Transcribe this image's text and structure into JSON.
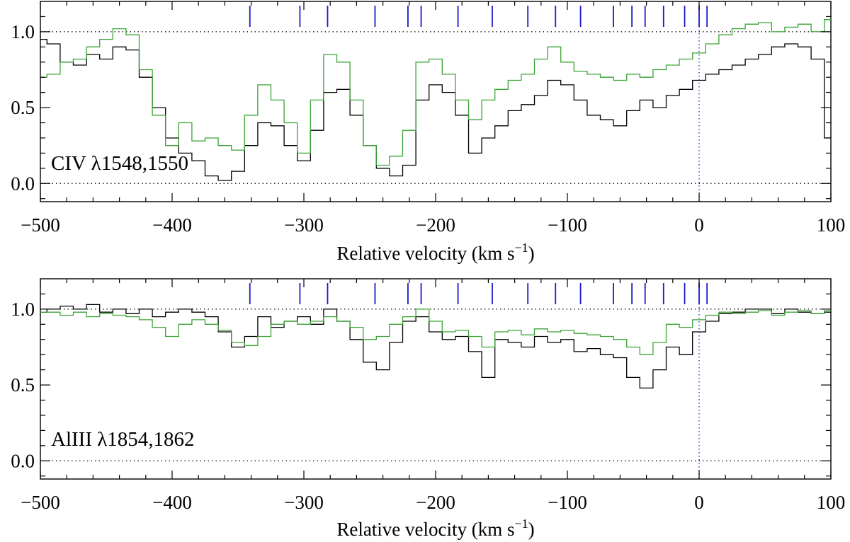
{
  "chart_data": [
    {
      "type": "line",
      "id": "civ",
      "label": "CIV λ1548,1550",
      "xlabel_main": "Relative velocity (km s",
      "xlabel_sup": "−1",
      "xlabel_close": ")",
      "xlim": [
        -500,
        100
      ],
      "ylim": [
        -0.12,
        1.2
      ],
      "x_ticks": [
        -500,
        -400,
        -300,
        -200,
        -100,
        0,
        100
      ],
      "x_tick_labels": [
        "−500",
        "−400",
        "−300",
        "−200",
        "−100",
        "0",
        "100"
      ],
      "y_ticks": [
        0.0,
        0.5,
        1.0
      ],
      "y_tick_labels": [
        "0.0",
        "0.5",
        "1.0"
      ],
      "reference_lines": [
        0.0,
        1.0
      ],
      "component_velocities": [
        -341,
        -303,
        -282,
        -246,
        -221,
        -211,
        -183,
        -157,
        -130,
        -109,
        -90,
        -65,
        -51,
        -41,
        -27,
        -11,
        0,
        6
      ],
      "series": [
        {
          "name": "black spectrum",
          "color": "#000000",
          "x": [
            -500,
            -490,
            -480,
            -470,
            -460,
            -450,
            -440,
            -430,
            -420,
            -410,
            -400,
            -390,
            -380,
            -370,
            -360,
            -350,
            -340,
            -330,
            -320,
            -310,
            -300,
            -290,
            -280,
            -270,
            -260,
            -250,
            -240,
            -230,
            -220,
            -210,
            -200,
            -190,
            -180,
            -170,
            -160,
            -150,
            -140,
            -130,
            -120,
            -110,
            -100,
            -90,
            -80,
            -70,
            -60,
            -50,
            -40,
            -30,
            -20,
            -10,
            0,
            10,
            20,
            30,
            40,
            50,
            60,
            70,
            80,
            90,
            100
          ],
          "y": [
            0.95,
            0.92,
            0.8,
            0.78,
            0.85,
            0.82,
            0.9,
            0.88,
            0.7,
            0.5,
            0.3,
            0.2,
            0.15,
            0.05,
            0.02,
            0.08,
            0.25,
            0.4,
            0.38,
            0.25,
            0.15,
            0.35,
            0.6,
            0.62,
            0.45,
            0.25,
            0.1,
            0.05,
            0.12,
            0.55,
            0.65,
            0.6,
            0.45,
            0.2,
            0.3,
            0.38,
            0.48,
            0.52,
            0.58,
            0.68,
            0.65,
            0.55,
            0.45,
            0.42,
            0.38,
            0.48,
            0.55,
            0.5,
            0.58,
            0.62,
            0.68,
            0.72,
            0.75,
            0.78,
            0.82,
            0.85,
            0.9,
            0.92,
            0.9,
            0.82,
            0.3
          ]
        },
        {
          "name": "green spectrum",
          "color": "#3aa335",
          "x": [
            -500,
            -490,
            -480,
            -470,
            -460,
            -450,
            -440,
            -430,
            -420,
            -410,
            -400,
            -390,
            -380,
            -370,
            -360,
            -350,
            -340,
            -330,
            -320,
            -310,
            -300,
            -290,
            -280,
            -270,
            -260,
            -250,
            -240,
            -230,
            -220,
            -210,
            -200,
            -190,
            -180,
            -170,
            -160,
            -150,
            -140,
            -130,
            -120,
            -110,
            -100,
            -90,
            -80,
            -70,
            -60,
            -50,
            -40,
            -30,
            -20,
            -10,
            0,
            10,
            20,
            30,
            40,
            50,
            60,
            70,
            80,
            90,
            100
          ],
          "y": [
            0.7,
            0.72,
            0.8,
            0.82,
            0.9,
            0.95,
            1.02,
            0.98,
            0.75,
            0.45,
            0.25,
            0.4,
            0.28,
            0.3,
            0.25,
            0.22,
            0.45,
            0.65,
            0.55,
            0.4,
            0.2,
            0.55,
            0.85,
            0.8,
            0.55,
            0.25,
            0.12,
            0.18,
            0.35,
            0.8,
            0.82,
            0.72,
            0.55,
            0.42,
            0.55,
            0.62,
            0.68,
            0.72,
            0.82,
            0.9,
            0.8,
            0.74,
            0.72,
            0.7,
            0.68,
            0.72,
            0.7,
            0.75,
            0.78,
            0.82,
            0.86,
            0.92,
            0.98,
            1.02,
            1.05,
            1.06,
            1.0,
            1.03,
            1.05,
            1.0,
            1.08
          ]
        }
      ]
    },
    {
      "type": "line",
      "id": "aliii",
      "label": "AlIII λ1854,1862",
      "xlabel_main": "Relative velocity (km s",
      "xlabel_sup": "−1",
      "xlabel_close": ")",
      "xlim": [
        -500,
        100
      ],
      "ylim": [
        -0.12,
        1.2
      ],
      "x_ticks": [
        -500,
        -400,
        -300,
        -200,
        -100,
        0,
        100
      ],
      "x_tick_labels": [
        "−500",
        "−400",
        "−300",
        "−200",
        "−100",
        "0",
        "100"
      ],
      "y_ticks": [
        0.0,
        0.5,
        1.0
      ],
      "y_tick_labels": [
        "0.0",
        "0.5",
        "1.0"
      ],
      "reference_lines": [
        0.0,
        1.0
      ],
      "component_velocities": [
        -341,
        -303,
        -282,
        -246,
        -221,
        -211,
        -183,
        -157,
        -130,
        -109,
        -90,
        -65,
        -51,
        -41,
        -27,
        -11,
        0,
        6
      ],
      "series": [
        {
          "name": "black spectrum",
          "color": "#000000",
          "x": [
            -500,
            -490,
            -480,
            -470,
            -460,
            -450,
            -440,
            -430,
            -420,
            -410,
            -400,
            -390,
            -380,
            -370,
            -360,
            -350,
            -340,
            -330,
            -320,
            -310,
            -300,
            -290,
            -280,
            -270,
            -260,
            -250,
            -240,
            -230,
            -220,
            -210,
            -200,
            -190,
            -180,
            -170,
            -160,
            -150,
            -140,
            -130,
            -120,
            -110,
            -100,
            -90,
            -80,
            -70,
            -60,
            -50,
            -40,
            -30,
            -20,
            -10,
            0,
            10,
            20,
            30,
            40,
            50,
            60,
            70,
            80,
            90,
            100
          ],
          "y": [
            0.98,
            1.0,
            1.02,
            1.0,
            1.03,
            0.98,
            1.0,
            0.97,
            1.0,
            0.95,
            0.98,
            1.0,
            0.98,
            0.95,
            0.85,
            0.75,
            0.82,
            0.95,
            0.88,
            0.92,
            0.95,
            0.9,
            1.0,
            0.92,
            0.8,
            0.65,
            0.6,
            0.78,
            0.92,
            0.95,
            0.85,
            0.8,
            0.82,
            0.72,
            0.55,
            0.8,
            0.78,
            0.75,
            0.82,
            0.78,
            0.8,
            0.72,
            0.74,
            0.7,
            0.68,
            0.55,
            0.48,
            0.6,
            0.75,
            0.7,
            0.85,
            0.92,
            0.97,
            0.98,
            1.0,
            1.0,
            0.97,
            1.0,
            0.98,
            0.97,
            0.98
          ]
        },
        {
          "name": "green spectrum",
          "color": "#3aa335",
          "x": [
            -500,
            -490,
            -480,
            -470,
            -460,
            -450,
            -440,
            -430,
            -420,
            -410,
            -400,
            -390,
            -380,
            -370,
            -360,
            -350,
            -340,
            -330,
            -320,
            -310,
            -300,
            -290,
            -280,
            -270,
            -260,
            -250,
            -240,
            -230,
            -220,
            -210,
            -200,
            -190,
            -180,
            -170,
            -160,
            -150,
            -140,
            -130,
            -120,
            -110,
            -100,
            -90,
            -80,
            -70,
            -60,
            -50,
            -40,
            -30,
            -20,
            -10,
            0,
            10,
            20,
            30,
            40,
            50,
            60,
            70,
            80,
            90,
            100
          ],
          "y": [
            0.98,
            0.98,
            0.96,
            0.98,
            0.95,
            0.97,
            0.96,
            0.95,
            0.93,
            0.88,
            0.82,
            0.9,
            0.93,
            0.9,
            0.86,
            0.78,
            0.76,
            0.82,
            0.9,
            0.92,
            0.9,
            0.92,
            0.95,
            0.92,
            0.88,
            0.8,
            0.82,
            0.9,
            0.95,
            1.0,
            0.92,
            0.85,
            0.86,
            0.82,
            0.75,
            0.85,
            0.86,
            0.83,
            0.87,
            0.85,
            0.86,
            0.84,
            0.83,
            0.82,
            0.8,
            0.75,
            0.7,
            0.78,
            0.9,
            0.88,
            0.93,
            0.96,
            0.98,
            0.97,
            0.98,
            0.99,
            0.96,
            0.98,
            0.99,
            0.97,
            0.99
          ]
        }
      ]
    }
  ]
}
